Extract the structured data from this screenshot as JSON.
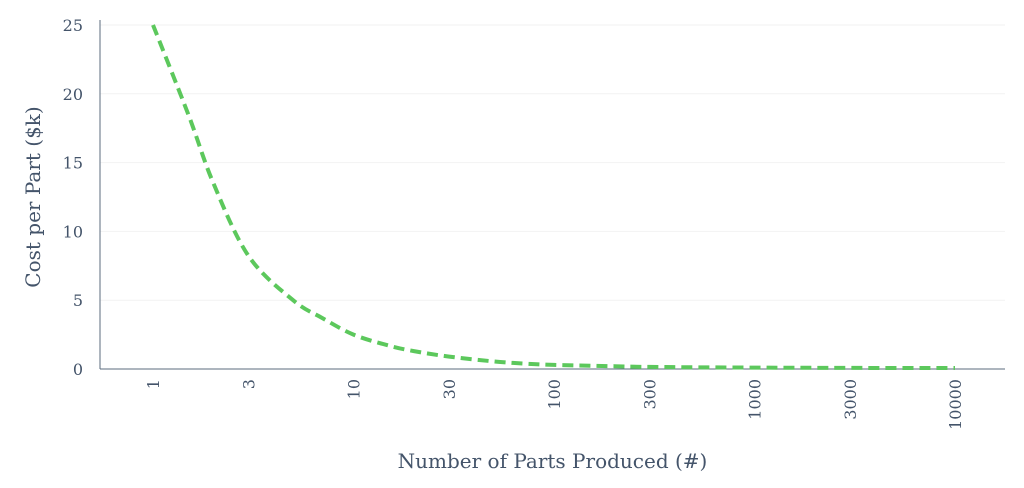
{
  "colors": {
    "line": "#5cc85c",
    "axis": "#5b6b7e",
    "text": "#44546a",
    "grid": "#f2f2f2"
  },
  "chart_data": {
    "type": "line",
    "title": "",
    "xlabel": "Number of Parts Produced (#)",
    "ylabel": "Cost per Part ($k)",
    "x_scale": "log",
    "x_ticks": [
      1,
      3,
      10,
      30,
      100,
      300,
      1000,
      3000,
      10000
    ],
    "x_tick_labels": [
      "1",
      "3",
      "10",
      "30",
      "100",
      "300",
      "1000",
      "3000",
      "10000"
    ],
    "ylim": [
      0,
      25
    ],
    "y_ticks": [
      0,
      5,
      10,
      15,
      20,
      25
    ],
    "y_tick_labels": [
      "0",
      "5",
      "10",
      "15",
      "20",
      "25"
    ],
    "grid": "horizontal",
    "legend": "none",
    "series": [
      {
        "style": "dashed",
        "x": [
          1,
          1.5,
          2,
          3,
          5,
          7,
          10,
          15,
          20,
          30,
          50,
          70,
          100,
          200,
          300,
          1000,
          3000,
          10000
        ],
        "y": [
          25,
          18.5,
          13.5,
          8.2,
          5.0,
          3.7,
          2.5,
          1.7,
          1.3,
          0.9,
          0.55,
          0.4,
          0.3,
          0.2,
          0.15,
          0.1,
          0.08,
          0.07
        ]
      }
    ]
  }
}
